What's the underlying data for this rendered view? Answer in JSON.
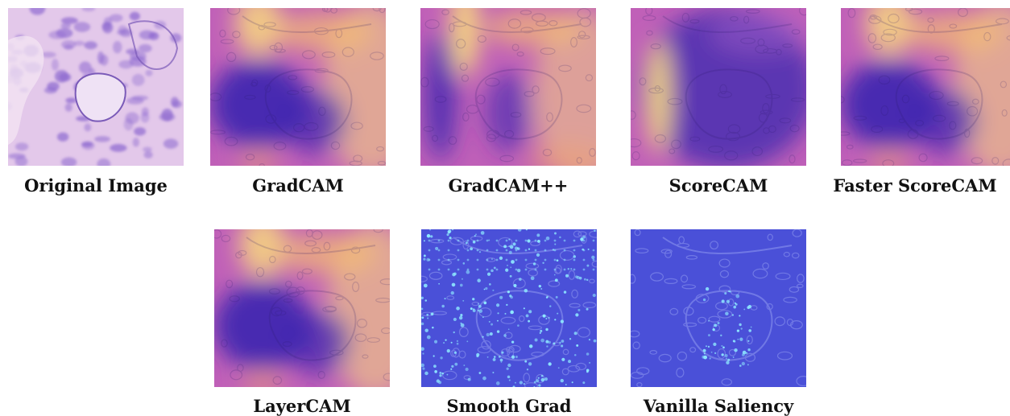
{
  "panels": [
    {
      "id": "original",
      "label": "Original Image",
      "kind": "he"
    },
    {
      "id": "gradcam",
      "label": "GradCAM",
      "kind": "gradcam"
    },
    {
      "id": "gradcampp",
      "label": "GradCAM++",
      "kind": "gradcampp"
    },
    {
      "id": "scorecam",
      "label": "ScoreCAM",
      "kind": "scorecam"
    },
    {
      "id": "fasterscorecam",
      "label": "Faster ScoreCAM",
      "kind": "gradcam"
    },
    {
      "id": "layercam",
      "label": "LayerCAM",
      "kind": "gradcam"
    },
    {
      "id": "smoothgrad",
      "label": "Smooth Grad",
      "kind": "smoothgrad"
    },
    {
      "id": "vanilla",
      "label": "Vanilla Saliency",
      "kind": "vanilla"
    }
  ],
  "colors": {
    "he_pink": "#e3c8ea",
    "he_purple": "#8e6ad0",
    "cam_low": "#3b25b0",
    "cam_mid": "#c060b8",
    "cam_high": "#fbe07a",
    "saliency_bg": "#4a50d8",
    "saliency_spot": "#8ee8ff"
  }
}
